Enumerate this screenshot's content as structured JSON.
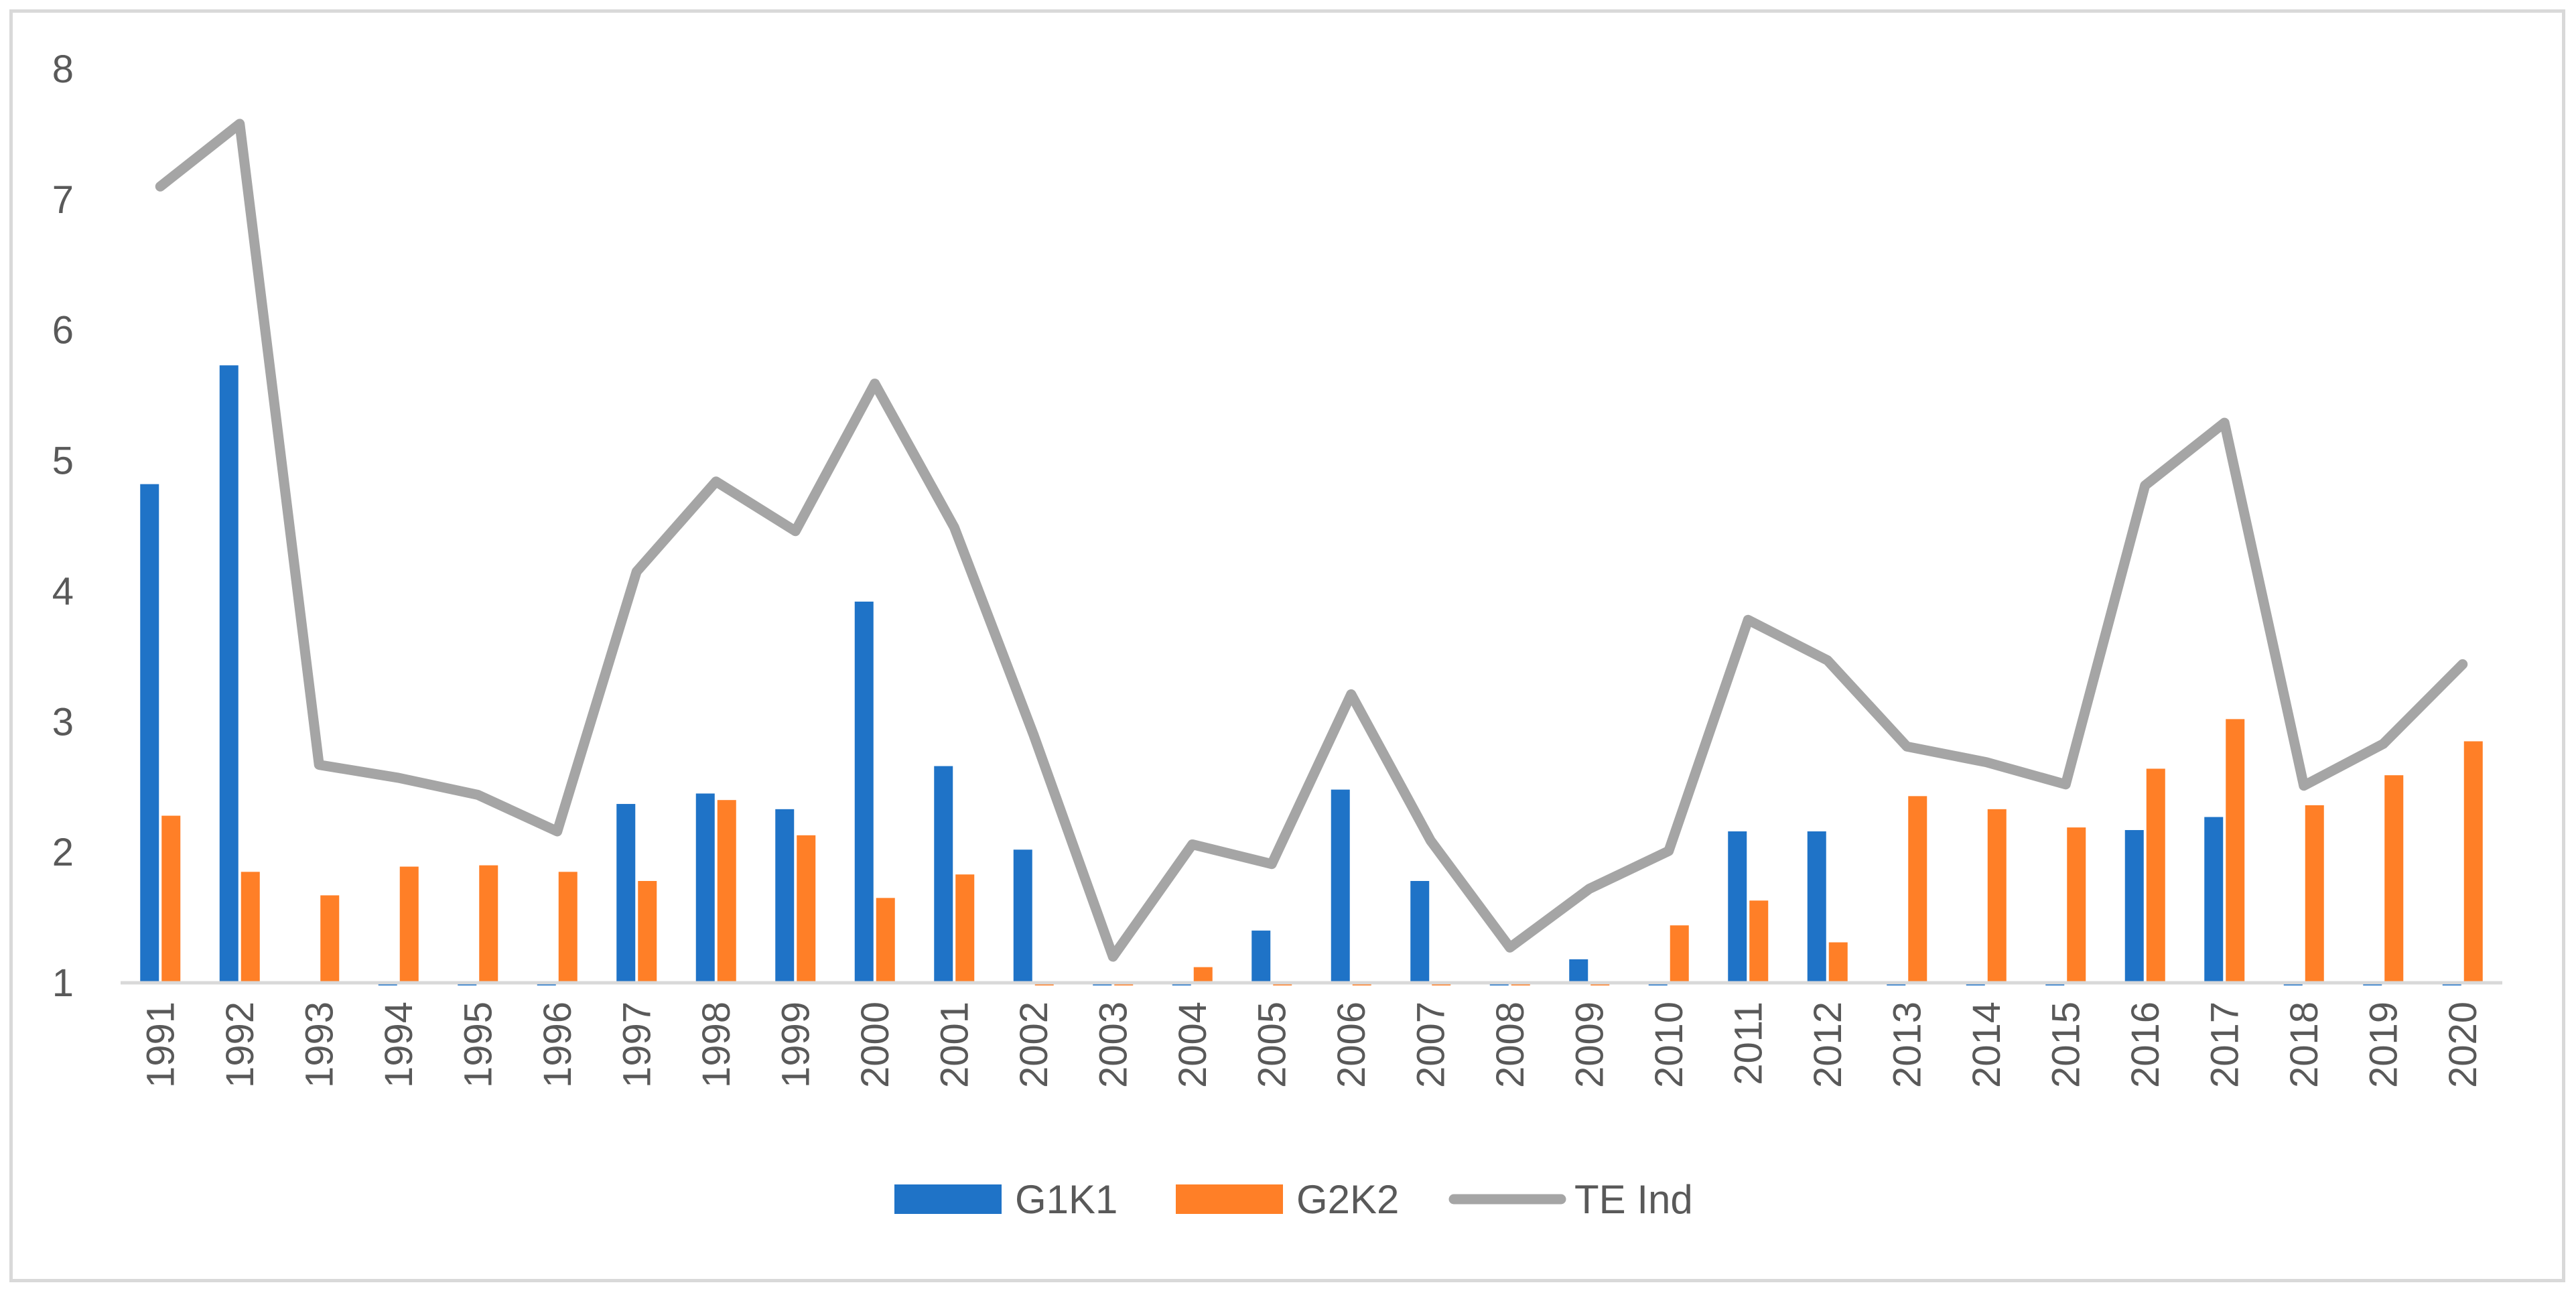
{
  "chart_data": {
    "type": "bar",
    "title": "",
    "xlabel": "",
    "ylabel": "",
    "ylim": [
      1,
      8
    ],
    "yticks": [
      "1",
      "2",
      "3",
      "4",
      "5",
      "6",
      "7",
      "8"
    ],
    "categories": [
      "1991",
      "1992",
      "1993",
      "1994",
      "1995",
      "1996",
      "1997",
      "1998",
      "1999",
      "2000",
      "2001",
      "2002",
      "2003",
      "2004",
      "2005",
      "2006",
      "2007",
      "2008",
      "2009",
      "2010",
      "2011",
      "2012",
      "2013",
      "2014",
      "2015",
      "2016",
      "2017",
      "2018",
      "2019",
      "2020"
    ],
    "series": [
      {
        "name": "G1K1",
        "kind": "bar",
        "color": "#1f73c7",
        "values": [
          4.82,
          5.73,
          1.0,
          0.98,
          0.98,
          0.98,
          2.37,
          2.45,
          2.33,
          3.92,
          2.66,
          2.02,
          0.98,
          0.98,
          1.4,
          2.48,
          1.78,
          0.98,
          1.18,
          0.98,
          2.16,
          2.16,
          0.98,
          0.98,
          0.98,
          2.17,
          2.27,
          0.98,
          0.98,
          0.98
        ]
      },
      {
        "name": "G2K2",
        "kind": "bar",
        "color": "#ff7f27",
        "values": [
          2.28,
          1.85,
          1.67,
          1.89,
          1.9,
          1.85,
          1.78,
          2.4,
          2.13,
          1.65,
          1.83,
          0.98,
          0.98,
          1.12,
          0.98,
          0.98,
          0.98,
          0.98,
          0.98,
          1.44,
          1.63,
          1.31,
          2.43,
          2.33,
          2.19,
          2.64,
          3.02,
          2.36,
          2.59,
          2.85
        ]
      },
      {
        "name": "TE Ind",
        "kind": "line",
        "color": "#a5a5a5",
        "values": [
          7.1,
          7.58,
          2.67,
          2.57,
          2.44,
          2.16,
          4.15,
          4.84,
          4.46,
          5.59,
          4.49,
          2.9,
          1.2,
          2.06,
          1.91,
          3.21,
          2.09,
          1.27,
          1.72,
          2.01,
          3.78,
          3.47,
          2.81,
          2.69,
          2.52,
          4.81,
          5.29,
          2.51,
          2.83,
          3.44
        ]
      }
    ],
    "legend_position": "bottom",
    "grid": false
  }
}
